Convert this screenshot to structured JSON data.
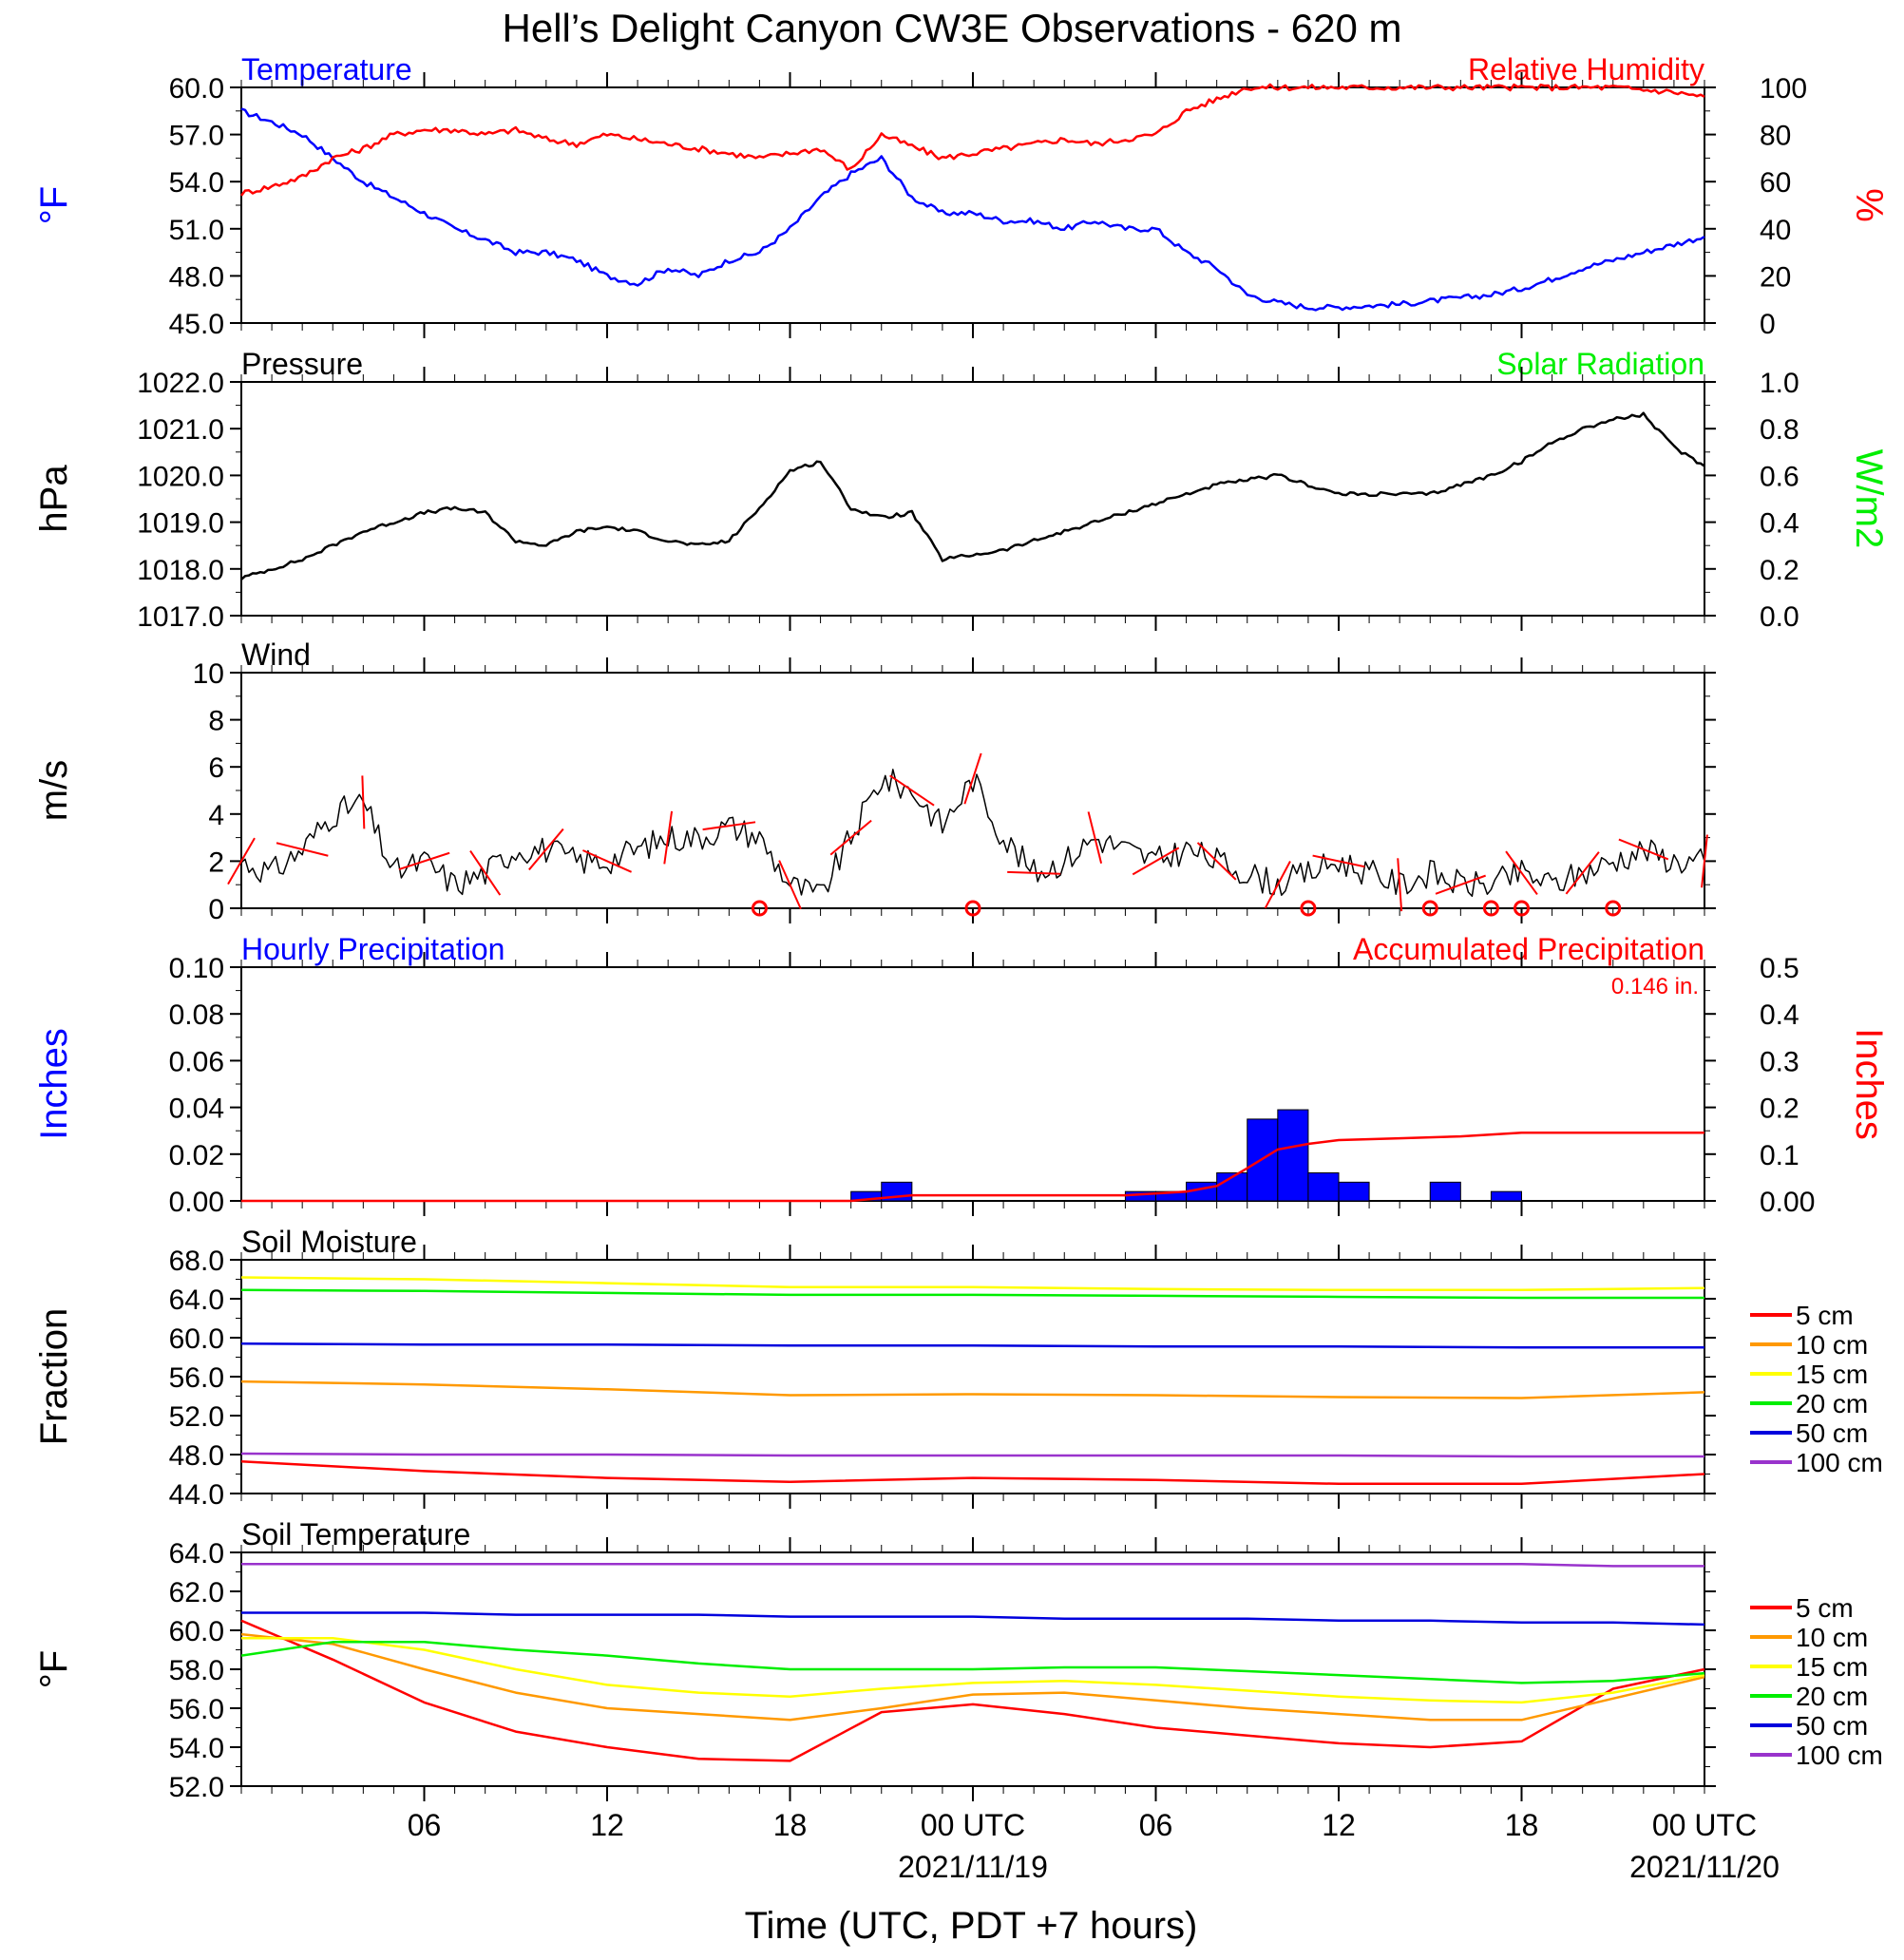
{
  "title": "Hell’s Delight Canyon CW3E Observations - 620 m",
  "x_axis": {
    "title": "Time (UTC, PDT +7 hours)",
    "ticks": [
      "06",
      "12",
      "18",
      "00 UTC",
      "06",
      "12",
      "18",
      "00 UTC"
    ],
    "dates": [
      "2021/11/19",
      "2021/11/20"
    ]
  },
  "colors": {
    "temperature": "#0000ff",
    "humidity": "#ff0000",
    "pressure": "#000000",
    "solar": "#00ee00",
    "wind": "#000000",
    "wind_barb": "#ff0000",
    "hourly_precip": "#0000ff",
    "accum_precip": "#ff0000",
    "depth_5": "#ff0000",
    "depth_10": "#ff9900",
    "depth_15": "#ffff00",
    "depth_20": "#00ee00",
    "depth_50": "#0000dd",
    "depth_100": "#9933cc"
  },
  "chart_data": [
    {
      "panel": "temperature-humidity",
      "type": "line",
      "left_title": "Temperature",
      "right_title": "Relative Humidity",
      "ylabel_left": "°F",
      "ylabel_right": "%",
      "ylim_left": [
        45,
        60
      ],
      "ylim_right": [
        0,
        100
      ],
      "yticks_left": [
        "60.0",
        "57.0",
        "54.0",
        "51.0",
        "48.0",
        "45.0"
      ],
      "yticks_right": [
        "100",
        "80",
        "60",
        "40",
        "20",
        "0"
      ],
      "x_hours": [
        0,
        1,
        2,
        3,
        4,
        5,
        6,
        7,
        8,
        9,
        10,
        11,
        12,
        13,
        14,
        15,
        16,
        17,
        18,
        19,
        20,
        21,
        22,
        23,
        24,
        25,
        26,
        27,
        28,
        29,
        30,
        31,
        32,
        33,
        34,
        35,
        36,
        37,
        38,
        39,
        40,
        41,
        42,
        43,
        44,
        45,
        46,
        47,
        48
      ],
      "series": [
        {
          "name": "Temperature",
          "axis": "left",
          "values": [
            58.5,
            57.8,
            57.0,
            55.5,
            54.0,
            53.0,
            52.0,
            51.0,
            50.3,
            49.5,
            49.5,
            49.0,
            48.0,
            47.5,
            48.5,
            48.0,
            49.0,
            49.5,
            51.0,
            53.0,
            54.5,
            55.5,
            53.0,
            52.0,
            52.0,
            51.5,
            51.5,
            51.0,
            51.5,
            51.0,
            51.0,
            49.5,
            48.5,
            46.8,
            46.3,
            46.0,
            46.0,
            46.1,
            46.2,
            46.4,
            46.6,
            46.8,
            47.2,
            47.8,
            48.5,
            49.0,
            49.5,
            50.0,
            50.5
          ]
        },
        {
          "name": "Relative Humidity",
          "axis": "right",
          "values": [
            55,
            58,
            62,
            70,
            74,
            80,
            82,
            82,
            80,
            82,
            78,
            76,
            80,
            78,
            76,
            74,
            72,
            70,
            72,
            74,
            65,
            80,
            75,
            70,
            72,
            74,
            76,
            78,
            76,
            78,
            80,
            90,
            95,
            100,
            100,
            100,
            100,
            100,
            100,
            100,
            100,
            100,
            100,
            100,
            100,
            100,
            99,
            98,
            96
          ]
        }
      ]
    },
    {
      "panel": "pressure-solar",
      "type": "line",
      "left_title": "Pressure",
      "right_title": "Solar Radiation",
      "ylabel_left": "hPa",
      "ylabel_right": "W/m2",
      "ylim_left": [
        1017,
        1022
      ],
      "ylim_right": [
        0,
        1
      ],
      "yticks_left": [
        "1022.0",
        "1021.0",
        "1020.0",
        "1019.0",
        "1018.0",
        "1017.0"
      ],
      "yticks_right": [
        "1.0",
        "0.8",
        "0.6",
        "0.4",
        "0.2",
        "0.0"
      ],
      "x_hours": [
        0,
        1,
        2,
        3,
        4,
        5,
        6,
        7,
        8,
        9,
        10,
        11,
        12,
        13,
        14,
        15,
        16,
        17,
        18,
        19,
        20,
        21,
        22,
        23,
        24,
        25,
        26,
        27,
        28,
        29,
        30,
        31,
        32,
        33,
        34,
        35,
        36,
        37,
        38,
        39,
        40,
        41,
        42,
        43,
        44,
        45,
        46,
        47,
        48
      ],
      "series": [
        {
          "name": "Pressure",
          "axis": "left",
          "values": [
            1017.8,
            1018.0,
            1018.2,
            1018.5,
            1018.8,
            1019.0,
            1019.2,
            1019.3,
            1019.2,
            1018.6,
            1018.5,
            1018.8,
            1018.9,
            1018.8,
            1018.6,
            1018.5,
            1018.6,
            1019.3,
            1020.1,
            1020.3,
            1019.3,
            1019.1,
            1019.2,
            1018.2,
            1018.3,
            1018.4,
            1018.6,
            1018.8,
            1019.0,
            1019.2,
            1019.4,
            1019.6,
            1019.8,
            1019.9,
            1020.0,
            1019.8,
            1019.6,
            1019.6,
            1019.6,
            1019.6,
            1019.8,
            1020.0,
            1020.3,
            1020.7,
            1021.0,
            1021.2,
            1021.3,
            1020.6,
            1020.2
          ]
        }
      ]
    },
    {
      "panel": "wind",
      "type": "line",
      "left_title": "Wind",
      "ylabel_left": "m/s",
      "ylim_left": [
        0,
        10
      ],
      "yticks_left": [
        "10",
        "8",
        "6",
        "4",
        "2",
        "0"
      ],
      "x_hours": [
        0,
        1,
        2,
        3,
        4,
        5,
        6,
        7,
        8,
        9,
        10,
        11,
        12,
        13,
        14,
        15,
        16,
        17,
        18,
        19,
        20,
        21,
        22,
        23,
        24,
        25,
        26,
        27,
        28,
        29,
        30,
        31,
        32,
        33,
        34,
        35,
        36,
        37,
        38,
        39,
        40,
        41,
        42,
        43,
        44,
        45,
        46,
        47,
        48
      ],
      "series": [
        {
          "name": "Wind speed",
          "axis": "left",
          "values": [
            2.0,
            1.5,
            2.5,
            4.0,
            4.5,
            1.5,
            2.0,
            1.0,
            1.5,
            2.5,
            2.5,
            2.0,
            2.0,
            2.5,
            3.0,
            3.0,
            3.5,
            3.0,
            1.0,
            0.5,
            3.0,
            5.5,
            5.0,
            3.5,
            5.5,
            3.0,
            1.5,
            2.0,
            3.0,
            2.5,
            2.0,
            2.5,
            2.0,
            1.5,
            1.0,
            1.5,
            2.0,
            1.5,
            1.0,
            1.5,
            1.0,
            1.0,
            1.5,
            1.0,
            1.5,
            2.0,
            2.5,
            2.0,
            2.0
          ]
        }
      ],
      "calm_hours": [
        17,
        24,
        35,
        39,
        41,
        42,
        45
      ]
    },
    {
      "panel": "precipitation",
      "type": "bar",
      "left_title": "Hourly Precipitation",
      "right_title": "Accumulated Precipitation",
      "annotation": "0.146 in.",
      "ylabel_left": "Inches",
      "ylabel_right": "Inches",
      "ylim_left": [
        0,
        0.1
      ],
      "ylim_right": [
        0,
        0.5
      ],
      "yticks_left": [
        "0.10",
        "0.08",
        "0.06",
        "0.04",
        "0.02",
        "0.00"
      ],
      "yticks_right": [
        "0.5",
        "0.4",
        "0.3",
        "0.2",
        "0.1",
        "0.00"
      ],
      "bars": [
        {
          "hour": 20,
          "value": 0.004
        },
        {
          "hour": 21,
          "value": 0.008
        },
        {
          "hour": 29,
          "value": 0.004
        },
        {
          "hour": 30,
          "value": 0.004
        },
        {
          "hour": 31,
          "value": 0.008
        },
        {
          "hour": 32,
          "value": 0.012
        },
        {
          "hour": 33,
          "value": 0.035
        },
        {
          "hour": 34,
          "value": 0.039
        },
        {
          "hour": 35,
          "value": 0.012
        },
        {
          "hour": 36,
          "value": 0.008
        },
        {
          "hour": 39,
          "value": 0.008
        },
        {
          "hour": 41,
          "value": 0.004
        }
      ],
      "accumulated": {
        "x_hours": [
          0,
          20,
          22,
          29,
          31,
          32,
          33,
          34,
          35,
          36,
          38,
          40,
          42,
          48
        ],
        "values": [
          0.0,
          0.0,
          0.012,
          0.012,
          0.02,
          0.032,
          0.07,
          0.11,
          0.122,
          0.13,
          0.134,
          0.138,
          0.146,
          0.146
        ]
      }
    },
    {
      "panel": "soil-moisture",
      "type": "line",
      "left_title": "Soil Moisture",
      "ylabel_left": "Fraction",
      "ylim_left": [
        44,
        68
      ],
      "yticks_left": [
        "68.0",
        "64.0",
        "60.0",
        "56.0",
        "52.0",
        "48.0",
        "44.0"
      ],
      "x_hours": [
        0,
        6,
        12,
        18,
        24,
        30,
        36,
        42,
        48
      ],
      "series": [
        {
          "name": "5 cm",
          "values": [
            47.3,
            46.3,
            45.6,
            45.2,
            45.6,
            45.4,
            45.0,
            45.0,
            46.0
          ]
        },
        {
          "name": "10 cm",
          "values": [
            55.5,
            55.2,
            54.7,
            54.1,
            54.2,
            54.1,
            53.9,
            53.8,
            54.4
          ]
        },
        {
          "name": "15 cm",
          "values": [
            66.2,
            66.0,
            65.6,
            65.2,
            65.2,
            65.0,
            64.9,
            64.9,
            65.1
          ]
        },
        {
          "name": "20 cm",
          "values": [
            64.9,
            64.8,
            64.6,
            64.4,
            64.4,
            64.3,
            64.2,
            64.1,
            64.1
          ]
        },
        {
          "name": "50 cm",
          "values": [
            59.4,
            59.3,
            59.3,
            59.2,
            59.2,
            59.1,
            59.1,
            59.0,
            59.0
          ]
        },
        {
          "name": "100 cm",
          "values": [
            48.1,
            48.0,
            48.0,
            47.9,
            47.9,
            47.9,
            47.9,
            47.8,
            47.8
          ]
        }
      ]
    },
    {
      "panel": "soil-temperature",
      "type": "line",
      "left_title": "Soil Temperature",
      "ylabel_left": "°F",
      "ylim_left": [
        52,
        64
      ],
      "yticks_left": [
        "64.0",
        "62.0",
        "60.0",
        "58.0",
        "56.0",
        "54.0",
        "52.0"
      ],
      "x_hours": [
        0,
        3,
        6,
        9,
        12,
        15,
        18,
        21,
        24,
        27,
        30,
        33,
        36,
        39,
        42,
        45,
        48
      ],
      "series": [
        {
          "name": "5 cm",
          "values": [
            60.5,
            58.5,
            56.3,
            54.8,
            54.0,
            53.4,
            53.3,
            55.8,
            56.2,
            55.7,
            55.0,
            54.6,
            54.2,
            54.0,
            54.3,
            57.0,
            58.0
          ]
        },
        {
          "name": "10 cm",
          "values": [
            59.8,
            59.3,
            58.0,
            56.8,
            56.0,
            55.7,
            55.4,
            56.0,
            56.7,
            56.8,
            56.4,
            56.0,
            55.7,
            55.4,
            55.4,
            56.5,
            57.6
          ]
        },
        {
          "name": "15 cm",
          "values": [
            59.6,
            59.6,
            59.0,
            58.0,
            57.2,
            56.8,
            56.6,
            57.0,
            57.3,
            57.4,
            57.2,
            56.9,
            56.6,
            56.4,
            56.3,
            56.8,
            57.7
          ]
        },
        {
          "name": "20 cm",
          "values": [
            58.7,
            59.4,
            59.4,
            59.0,
            58.7,
            58.3,
            58.0,
            58.0,
            58.0,
            58.1,
            58.1,
            57.9,
            57.7,
            57.5,
            57.3,
            57.4,
            57.8
          ]
        },
        {
          "name": "50 cm",
          "values": [
            60.9,
            60.9,
            60.9,
            60.8,
            60.8,
            60.8,
            60.7,
            60.7,
            60.7,
            60.6,
            60.6,
            60.6,
            60.5,
            60.5,
            60.4,
            60.4,
            60.3
          ]
        },
        {
          "name": "100 cm",
          "values": [
            63.4,
            63.4,
            63.4,
            63.4,
            63.4,
            63.4,
            63.4,
            63.4,
            63.4,
            63.4,
            63.4,
            63.4,
            63.4,
            63.4,
            63.4,
            63.3,
            63.3
          ]
        }
      ]
    }
  ]
}
